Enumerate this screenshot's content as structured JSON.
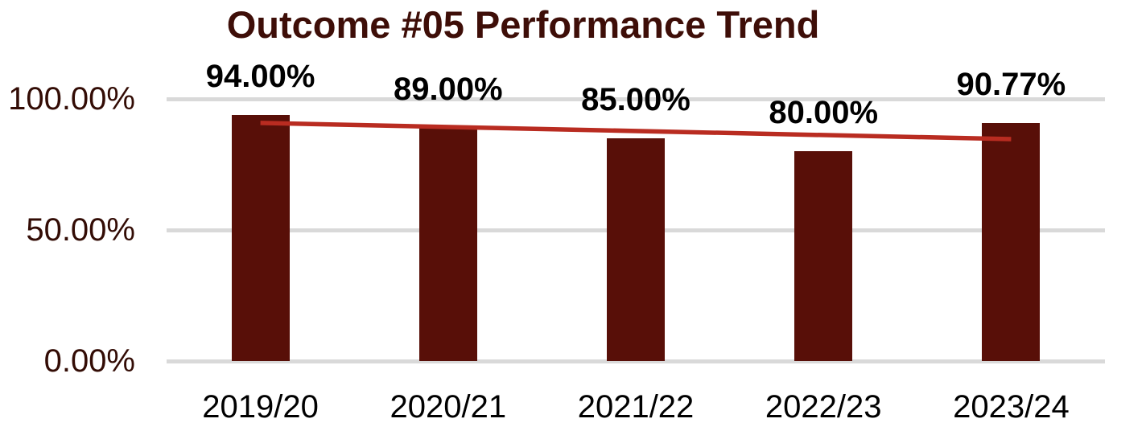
{
  "chart_data": {
    "type": "bar",
    "title": "Outcome #05 Performance Trend",
    "categories": [
      "2019/20",
      "2020/21",
      "2021/22",
      "2022/23",
      "2023/24"
    ],
    "values": [
      94.0,
      89.0,
      85.0,
      80.0,
      90.77
    ],
    "data_labels": [
      "94.00%",
      "89.00%",
      "85.00%",
      "80.00%",
      "90.77%"
    ],
    "xlabel": "",
    "ylabel": "",
    "ylim": [
      0,
      100
    ],
    "grid": "horizontal",
    "legend": "none",
    "y_axis": {
      "ticks": [
        {
          "value": 0,
          "label": "0.00%"
        },
        {
          "value": 50,
          "label": "50.00%"
        },
        {
          "value": 100,
          "label": "100.00%"
        }
      ]
    },
    "trendline": {
      "type": "linear",
      "start_value": 90.85,
      "end_value": 84.66
    },
    "colors": {
      "bar_fill": "#580F08",
      "trendline": "#B92C21",
      "title_text": "#3E0E08",
      "y_tick_text": "#330C05",
      "x_tick_text": "#000000",
      "data_label_text": "#000000",
      "gridline": "#D9D9D9",
      "background": "#FFFFFF"
    }
  }
}
